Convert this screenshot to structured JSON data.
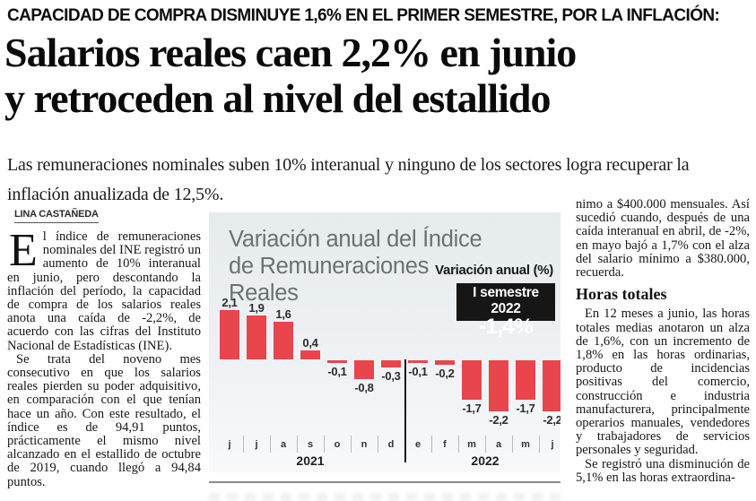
{
  "kicker": "CAPACIDAD DE COMPRA DISMINUYE 1,6% EN EL PRIMER SEMESTRE, POR LA INFLACIÓN:",
  "headline": {
    "line1": "Salarios reales caen 2,2% en junio",
    "line2": "y retroceden al nivel del estallido"
  },
  "subhead": "Las remuneraciones nominales suben 10% interanual y ninguno de los sectores logra recuperar la inflación anualizada de 12,5%.",
  "byline": "LINA CASTAÑEDA",
  "left_column": {
    "dropcap": "E",
    "p1": "l índice de remuneraciones nominales del INE registró un aumento de 10% interanual en junio, pero descontando la inflación del período, la capacidad de compra de los salarios reales anota una caída de -2,2%, de acuerdo con las cifras del Instituto Nacional de Estadísticas (INE).",
    "p2": "Se trata del noveno mes consecutivo en que los salarios reales pierden su poder adquisitivo, en comparación con el que tenían hace un año. Con este resultado, el índice es de 94,91 puntos, prácticamente el mismo nivel alcanzado en el estallido de octubre de 2019, cuando llegó a 94,84 puntos."
  },
  "right_column": {
    "p1": "nimo a $400.000 mensuales. Así sucedió cuando, después de una caída interanual en abril, de -2%, en mayo bajó a 1,7% con el alza del salario mínimo a $380.000, recuerda.",
    "heading": "Horas totales",
    "p2": "En 12 meses a junio, las horas totales medias anotaron un alza de 1,6%, con un incremento de 1,8% en las horas ordinarias, producto de incidencias positivas del comercio, construcción e industria manufacturera, principalmente operarios manuales, vendedores y trabajadores de servicios personales y seguridad.",
    "p3": "Se registró una disminución de 5,1% en las horas extraordina-"
  },
  "chart_data": {
    "type": "bar",
    "title_line1": "Variación anual del Índice",
    "title_line2": "de Remuneraciones Reales",
    "legend": "Variación anual (%)",
    "badge": {
      "label": "I semestre 2022",
      "value": "-1,4%"
    },
    "categories": [
      "j",
      "j",
      "a",
      "s",
      "o",
      "n",
      "d",
      "e",
      "f",
      "m",
      "a",
      "m",
      "j"
    ],
    "values": [
      2.1,
      1.9,
      1.6,
      0.4,
      -0.1,
      -0.8,
      -0.3,
      -0.1,
      -0.2,
      -1.7,
      -2.2,
      -1.7,
      -2.2
    ],
    "value_labels": [
      "2,1",
      "1,9",
      "1,6",
      "0,4",
      "-0,1",
      "-0,8",
      "-0,3",
      "-0,1",
      "-0,2",
      "-1,7",
      "-2,2",
      "-1,7",
      "-2,2"
    ],
    "year_groups": [
      {
        "label": "2021",
        "start": 0,
        "end": 6
      },
      {
        "label": "2022",
        "start": 7,
        "end": 12
      }
    ],
    "bar_color": "#e8454d",
    "ylim": [
      -2.5,
      2.5
    ],
    "grid": false,
    "legend_position": "top-right"
  }
}
